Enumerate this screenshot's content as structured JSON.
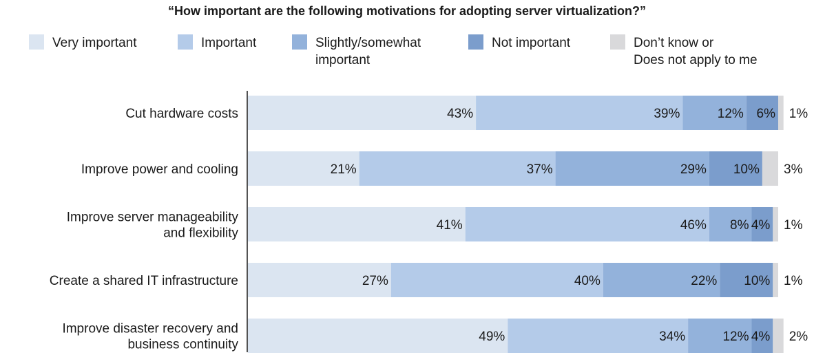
{
  "colors": {
    "very_important": "#dbe5f1",
    "important": "#b4cbe9",
    "slightly": "#93b2db",
    "not_important": "#7b9dcc",
    "dont_know": "#d9d9db"
  },
  "chart_data": {
    "type": "bar",
    "orientation": "horizontal",
    "stacked": true,
    "title": "“How important are the following motivations for adopting server virtualization?”",
    "xlabel": "",
    "ylabel": "",
    "xlim": [
      0,
      100
    ],
    "grid": false,
    "legend_position": "top",
    "categories": [
      "Cut hardware costs",
      "Improve power and cooling",
      "Improve server manageability\nand flexibility",
      "Create a shared IT infrastructure",
      "Improve disaster recovery and\nbusiness continuity"
    ],
    "series": [
      {
        "name": "Very important",
        "color_key": "very_important",
        "values": [
          43,
          21,
          41,
          27,
          49
        ]
      },
      {
        "name": "Important",
        "color_key": "important",
        "values": [
          39,
          37,
          46,
          40,
          34
        ]
      },
      {
        "name": "Slightly/somewhat\nimportant",
        "color_key": "slightly",
        "values": [
          12,
          29,
          8,
          22,
          12
        ]
      },
      {
        "name": "Not important",
        "color_key": "not_important",
        "values": [
          6,
          10,
          4,
          10,
          4
        ]
      },
      {
        "name": "Don’t know or\nDoes not apply to me",
        "color_key": "dont_know",
        "values": [
          1,
          3,
          1,
          1,
          2
        ]
      }
    ],
    "value_suffix": "%"
  }
}
